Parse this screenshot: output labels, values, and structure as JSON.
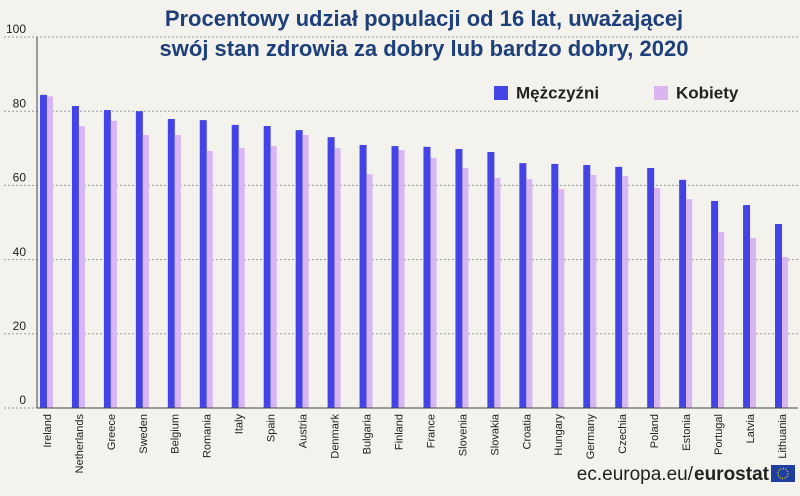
{
  "chart_data": {
    "type": "bar",
    "title": [
      "Procentowy udział populacji od 16 lat, uważającej",
      "swój stan zdrowia za dobry lub bardzo dobry, 2020"
    ],
    "categories": [
      "Ireland",
      "Netherlands",
      "Greece",
      "Sweden",
      "Belgium",
      "Romania",
      "Italy",
      "Spain",
      "Austria",
      "Denmark",
      "Bulgaria",
      "Finland",
      "France",
      "Slovenia",
      "Slovakia",
      "Croatia",
      "Hungary",
      "Germany",
      "Czechia",
      "Poland",
      "Estonia",
      "Portugal",
      "Latvia",
      "Lithuania"
    ],
    "series": [
      {
        "name": "Mężczyźni",
        "color": "#4343e6",
        "values": [
          84.4,
          81.4,
          80.3,
          80.0,
          77.9,
          77.6,
          76.3,
          76.0,
          74.9,
          73.0,
          70.9,
          70.6,
          70.4,
          69.8,
          69.0,
          66.0,
          65.8,
          65.5,
          65.0,
          64.7,
          61.5,
          55.8,
          54.7,
          49.6
        ]
      },
      {
        "name": "Kobiety",
        "color": "#d9b6f2",
        "values": [
          84.0,
          76.0,
          77.4,
          73.6,
          73.6,
          69.3,
          70.1,
          70.6,
          73.6,
          70.1,
          63.0,
          69.5,
          67.4,
          64.7,
          62.0,
          61.7,
          59.0,
          62.8,
          62.5,
          59.3,
          56.3,
          47.4,
          45.8,
          40.7
        ]
      }
    ],
    "ylim": [
      0,
      100
    ],
    "yticks": [
      0,
      20,
      40,
      60,
      80,
      100
    ],
    "grid": true,
    "legend": "top-right",
    "source": "ec.europa.eu/",
    "source_bold": "eurostat"
  }
}
